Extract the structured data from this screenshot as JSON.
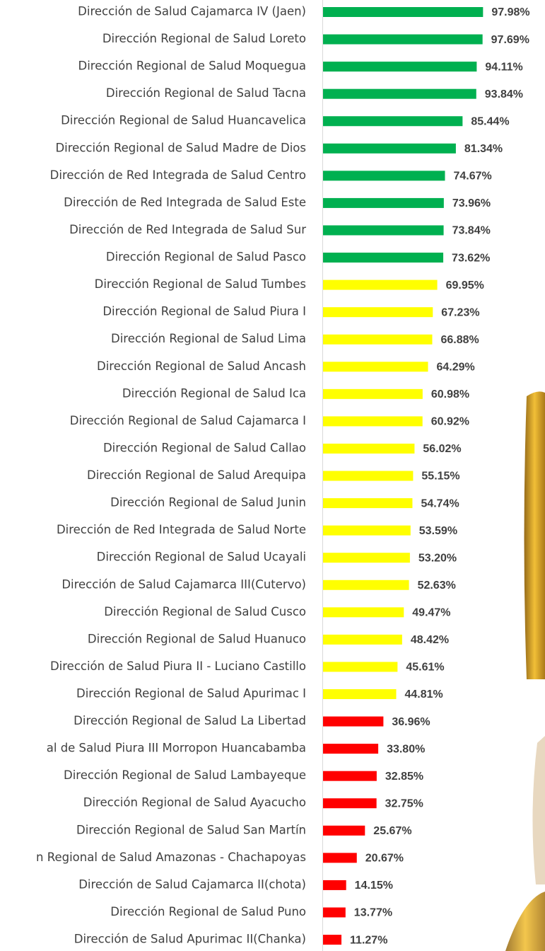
{
  "chart_data": {
    "type": "bar",
    "orientation": "horizontal",
    "categories": [
      "Dirección de Salud Cajamarca IV (Jaen)",
      "Dirección Regional de Salud Loreto",
      "Dirección Regional de Salud Moquegua",
      "Dirección Regional de Salud Tacna",
      "Dirección Regional de Salud Huancavelica",
      "Dirección Regional de Salud Madre de Dios",
      "Dirección de Red Integrada de Salud Centro",
      "Dirección de Red Integrada de Salud Este",
      "Dirección de Red Integrada de Salud Sur",
      "Dirección Regional de Salud Pasco",
      "Dirección Regional de Salud Tumbes",
      "Dirección Regional de Salud Piura I",
      "Dirección Regional de Salud Lima",
      "Dirección Regional de Salud Ancash",
      "Dirección Regional de Salud Ica",
      "Dirección Regional de Salud Cajamarca I",
      "Dirección Regional de Salud Callao",
      "Dirección Regional de Salud Arequipa",
      "Dirección Regional de Salud Junin",
      "Dirección de Red Integrada de Salud Norte",
      "Dirección Regional de Salud Ucayali",
      "Dirección de Salud Cajamarca III(Cutervo)",
      "Dirección Regional de Salud Cusco",
      "Dirección Regional de Salud Huanuco",
      "Dirección de Salud Piura II - Luciano Castillo",
      "Dirección Regional de Salud Apurimac I",
      "Dirección Regional de Salud La Libertad",
      "al de Salud Piura III Morropon Huancabamba",
      "Dirección Regional de Salud Lambayeque",
      "Dirección Regional de Salud Ayacucho",
      "Dirección Regional de Salud San Martín",
      "n Regional de Salud Amazonas - Chachapoyas",
      "Dirección de Salud Cajamarca II(chota)",
      "Dirección Regional de Salud Puno",
      "Dirección de Salud Apurimac II(Chanka)"
    ],
    "values": [
      97.98,
      97.69,
      94.11,
      93.84,
      85.44,
      81.34,
      74.67,
      73.96,
      73.84,
      73.62,
      69.95,
      67.23,
      66.88,
      64.29,
      60.98,
      60.92,
      56.02,
      55.15,
      54.74,
      53.59,
      53.2,
      52.63,
      49.47,
      48.42,
      45.61,
      44.81,
      36.96,
      33.8,
      32.85,
      32.75,
      25.67,
      20.67,
      14.15,
      13.77,
      11.27
    ],
    "value_labels": [
      "97.98%",
      "97.69%",
      "94.11%",
      "93.84%",
      "85.44%",
      "81.34%",
      "74.67%",
      "73.96%",
      "73.84%",
      "73.62%",
      "69.95%",
      "67.23%",
      "66.88%",
      "64.29%",
      "60.98%",
      "60.92%",
      "56.02%",
      "55.15%",
      "54.74%",
      "53.59%",
      "53.20%",
      "52.63%",
      "49.47%",
      "48.42%",
      "45.61%",
      "44.81%",
      "36.96%",
      "33.80%",
      "32.85%",
      "32.75%",
      "25.67%",
      "20.67%",
      "14.15%",
      "13.77%",
      "11.27%"
    ],
    "colors": [
      "#00b050",
      "#00b050",
      "#00b050",
      "#00b050",
      "#00b050",
      "#00b050",
      "#00b050",
      "#00b050",
      "#00b050",
      "#00b050",
      "#ffff00",
      "#ffff00",
      "#ffff00",
      "#ffff00",
      "#ffff00",
      "#ffff00",
      "#ffff00",
      "#ffff00",
      "#ffff00",
      "#ffff00",
      "#ffff00",
      "#ffff00",
      "#ffff00",
      "#ffff00",
      "#ffff00",
      "#ffff00",
      "#ff0000",
      "#ff0000",
      "#ff0000",
      "#ff0000",
      "#ff0000",
      "#ff0000",
      "#ff0000",
      "#ff0000",
      "#ff0000"
    ]
  }
}
